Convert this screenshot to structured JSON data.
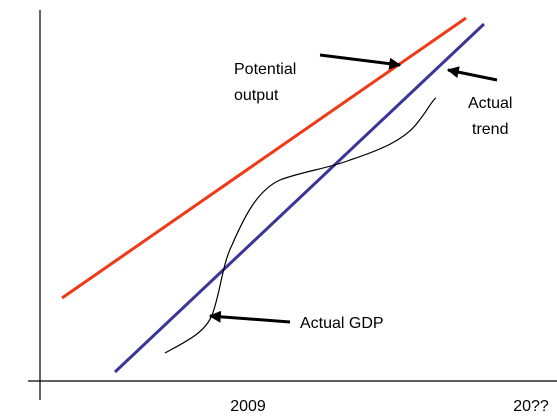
{
  "annotations": {
    "potential_output": [
      "Potential",
      "output"
    ],
    "actual_trend": [
      "Actual",
      "trend"
    ],
    "actual_gdp": "Actual GDP"
  },
  "x_axis_labels": [
    "2009",
    "20??"
  ]
}
